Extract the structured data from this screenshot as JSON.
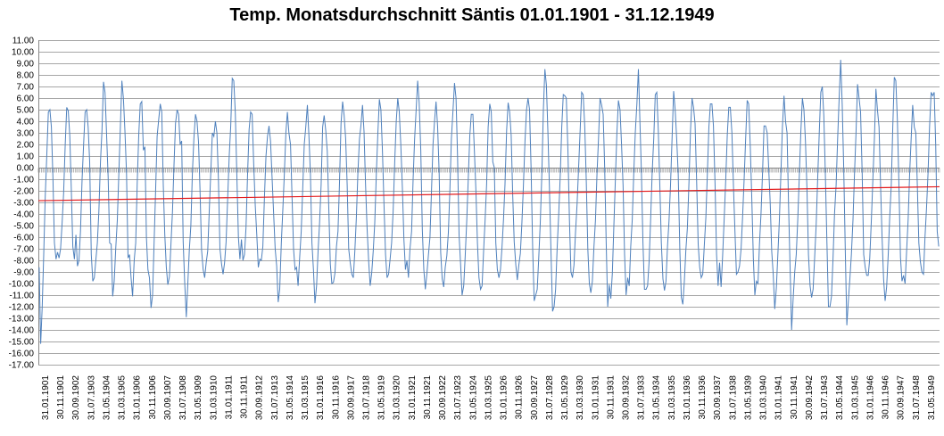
{
  "chart_data": {
    "type": "line",
    "title": "Temp. Monatsdurchschnitt Säntis 01.01.1901  - 31.12.1949",
    "xlabel": "",
    "ylabel": "",
    "ylim": [
      -17,
      11
    ],
    "y_ticks": [
      "11.00",
      "10.00",
      "9.00",
      "8.00",
      "7.00",
      "6.00",
      "5.00",
      "4.00",
      "3.00",
      "2.00",
      "1.00",
      "0.00",
      "-1.00",
      "-2.00",
      "-3.00",
      "-4.00",
      "-5.00",
      "-6.00",
      "-7.00",
      "-8.00",
      "-9.00",
      "-10.00",
      "-11.00",
      "-12.00",
      "-13.00",
      "-14.00",
      "-15.00",
      "-16.00",
      "-17.00"
    ],
    "x_ticks": [
      "31.01.1901",
      "30.11.1901",
      "30.09.1902",
      "31.07.1903",
      "31.05.1904",
      "31.03.1905",
      "31.01.1906",
      "30.11.1906",
      "30.09.1907",
      "31.07.1908",
      "31.05.1909",
      "31.03.1910",
      "31.01.1911",
      "30.11.1911",
      "30.09.1912",
      "31.07.1913",
      "31.05.1914",
      "31.03.1915",
      "31.01.1916",
      "30.11.1916",
      "30.09.1917",
      "31.07.1918",
      "31.05.1919",
      "31.03.1920",
      "31.01.1921",
      "30.11.1921",
      "30.09.1922",
      "31.07.1923",
      "31.05.1924",
      "31.03.1925",
      "31.01.1926",
      "30.11.1926",
      "30.09.1927",
      "31.07.1928",
      "31.05.1929",
      "31.03.1930",
      "31.01.1931",
      "30.11.1931",
      "30.09.1932",
      "31.07.1933",
      "31.05.1934",
      "31.03.1935",
      "31.01.1936",
      "30.11.1936",
      "30.09.1937",
      "31.07.1938",
      "31.05.1939",
      "31.03.1940",
      "31.01.1941",
      "30.11.1941",
      "30.09.1942",
      "31.07.1943",
      "31.05.1944",
      "31.03.1945",
      "31.01.1946",
      "30.11.1946",
      "30.09.1947",
      "31.07.1948",
      "31.05.1949"
    ],
    "grid": true,
    "legend": "none",
    "colors": {
      "series": "#4f81bd",
      "trend": "#e31a1c",
      "grid": "#a6a6a6"
    },
    "series": [
      {
        "type": "line",
        "values": [
          -8.6,
          -15.2,
          -12.0,
          -7.5,
          -2.5,
          1.0,
          4.8,
          5.0,
          3.5,
          -0.8,
          -6.5,
          -7.9,
          -7.3,
          -7.8,
          -7.0,
          -4.8,
          -2.2,
          2.0,
          5.2,
          4.9,
          2.8,
          -1.8,
          -6.8,
          -7.9,
          -5.8,
          -8.5,
          -8.0,
          -5.5,
          -1.0,
          2.0,
          4.8,
          5.0,
          3.5,
          0.5,
          -7.5,
          -9.8,
          -9.5,
          -8.0,
          -6.5,
          -3.8,
          0.5,
          3.2,
          7.4,
          6.5,
          3.0,
          -0.8,
          -6.5,
          -6.6,
          -11.1,
          -9.8,
          -7.0,
          -4.5,
          -0.5,
          3.5,
          7.5,
          6.0,
          3.2,
          -0.5,
          -7.8,
          -7.5,
          -9.5,
          -11.1,
          -8.0,
          -6.5,
          -1.3,
          2.8,
          5.5,
          5.7,
          1.5,
          1.8,
          -6.0,
          -8.8,
          -9.5,
          -12.1,
          -11.0,
          -6.5,
          -2.0,
          2.7,
          4.1,
          5.5,
          4.8,
          -1.5,
          -5.8,
          -8.6,
          -10.1,
          -9.4,
          -6.6,
          -3.8,
          0.2,
          3.8,
          5.0,
          4.6,
          2.0,
          2.3,
          -6.4,
          -9.9,
          -12.9,
          -10.0,
          -7.1,
          -5.0,
          -0.5,
          2.5,
          4.6,
          4.0,
          2.2,
          -2.0,
          -7.1,
          -8.8,
          -9.5,
          -8.2,
          -7.2,
          -3.8,
          -0.5,
          3.0,
          2.7,
          4.0,
          3.0,
          -1.0,
          -7.0,
          -8.3,
          -9.2,
          -8.2,
          -6.4,
          -2.8,
          1.0,
          3.6,
          7.7,
          7.5,
          4.8,
          -0.5,
          -6.0,
          -7.9,
          -6.2,
          -8.0,
          -7.5,
          -5.2,
          -0.5,
          3.3,
          4.8,
          4.6,
          0.4,
          -3.3,
          -5.8,
          -8.6,
          -7.9,
          -8.0,
          -6.8,
          -2.5,
          1.0,
          2.7,
          3.6,
          2.3,
          -0.8,
          -4.0,
          -7.0,
          -8.5,
          -11.6,
          -10.5,
          -6.5,
          -3.6,
          -0.5,
          3.0,
          4.8,
          3.0,
          2.0,
          -2.5,
          -7.0,
          -8.8,
          -8.6,
          -10.2,
          -7.7,
          -5.5,
          -1.8,
          2.0,
          3.5,
          5.4,
          2.8,
          -0.5,
          -6.5,
          -8.8,
          -11.7,
          -10.2,
          -7.2,
          -4.7,
          -1.5,
          3.5,
          4.5,
          3.2,
          1.4,
          -3.5,
          -8.3,
          -10.0,
          -9.9,
          -9.1,
          -6.8,
          -5.5,
          -1.3,
          3.8,
          5.7,
          4.5,
          2.5,
          -1.5,
          -7.0,
          -8.2,
          -9.2,
          -9.5,
          -7.2,
          -4.3,
          -0.5,
          2.5,
          3.7,
          5.4,
          3.1,
          -1.5,
          -5.2,
          -8.1,
          -10.2,
          -9.1,
          -7.2,
          -4.8,
          -0.5,
          3.0,
          5.9,
          5.0,
          1.5,
          -3.0,
          -7.5,
          -9.5,
          -9.2,
          -7.9,
          -6.5,
          -3.8,
          0.5,
          4.0,
          6.0,
          4.8,
          2.0,
          -1.8,
          -6.2,
          -8.8,
          -8.0,
          -9.5,
          -7.0,
          -5.5,
          -1.0,
          2.5,
          5.0,
          7.5,
          5.6,
          1.5,
          -5.3,
          -8.8,
          -10.5,
          -9.2,
          -7.5,
          -6.0,
          -2.0,
          2.0,
          4.0,
          5.7,
          3.5,
          -0.5,
          -7.3,
          -9.6,
          -10.3,
          -8.6,
          -7.6,
          -5.6,
          -2.0,
          2.5,
          4.8,
          7.3,
          6.0,
          1.0,
          -5.8,
          -8.3,
          -11.0,
          -10.2,
          -7.6,
          -4.6,
          -1.0,
          2.7,
          4.6,
          4.6,
          1.4,
          -2.0,
          -6.5,
          -9.5,
          -10.5,
          -10.2,
          -7.2,
          -4.5,
          -1.4,
          3.5,
          5.5,
          4.8,
          0.5,
          0.0,
          -6.5,
          -8.8,
          -9.5,
          -8.8,
          -6.9,
          -4.5,
          -1.4,
          3.2,
          5.6,
          4.8,
          2.8,
          -2.3,
          -6.4,
          -8.4,
          -9.7,
          -8.4,
          -7.4,
          -4.8,
          -1.6,
          2.3,
          5.0,
          6.0,
          5.0,
          0.0,
          -7.0,
          -11.5,
          -11.0,
          -10.5,
          -7.8,
          -4.8,
          -0.5,
          5.0,
          8.5,
          7.1,
          3.0,
          -1.8,
          -7.5,
          -12.4,
          -12.0,
          -10.5,
          -7.0,
          -4.0,
          -0.7,
          3.5,
          6.3,
          6.2,
          6.0,
          1.5,
          -4.5,
          -9.0,
          -9.5,
          -8.4,
          -5.6,
          -3.1,
          0.0,
          3.2,
          6.5,
          6.3,
          3.5,
          -1.2,
          -7.0,
          -10.0,
          -10.8,
          -9.8,
          -6.8,
          -4.5,
          -0.5,
          2.5,
          6.0,
          5.4,
          4.6,
          0.0,
          -6.5,
          -12.0,
          -10.1,
          -11.3,
          -9.1,
          -5.0,
          -1.0,
          3.0,
          5.8,
          5.0,
          2.0,
          -1.5,
          -7.5,
          -11.0,
          -9.5,
          -10.2,
          -6.8,
          -4.5,
          -0.5,
          3.0,
          5.5,
          8.5,
          4.0,
          -0.5,
          -6.5,
          -10.5,
          -10.5,
          -10.2,
          -8.1,
          -4.5,
          -0.5,
          2.5,
          6.3,
          6.5,
          3.2,
          -1.5,
          -6.5,
          -9.6,
          -10.6,
          -9.8,
          -6.8,
          -4.6,
          -1.5,
          2.7,
          6.6,
          5.0,
          2.5,
          -0.5,
          -7.0,
          -11.2,
          -11.8,
          -9.8,
          -7.1,
          -5.2,
          -1.2,
          3.2,
          6.0,
          5.2,
          3.8,
          -1.0,
          -6.6,
          -8.6,
          -9.5,
          -9.2,
          -6.8,
          -4.3,
          -0.5,
          3.5,
          5.5,
          5.5,
          3.6,
          -1.4,
          -7.5,
          -10.2,
          -8.2,
          -10.3,
          -7.6,
          -4.3,
          -1.0,
          2.8,
          5.2,
          5.2,
          3.0,
          -1.5,
          -5.5,
          -9.2,
          -9.0,
          -8.5,
          -7.0,
          -4.2,
          -1.0,
          2.5,
          5.8,
          5.5,
          1.8,
          -2.7,
          -7.8,
          -11.0,
          -9.8,
          -10.0,
          -6.6,
          -4.0,
          -0.5,
          3.6,
          3.6,
          3.0,
          0.0,
          -3.0,
          -7.2,
          -9.2,
          -12.2,
          -10.4,
          -7.5,
          -4.5,
          -0.5,
          3.5,
          6.2,
          4.0,
          3.0,
          -3.3,
          -8.6,
          -14.0,
          -11.2,
          -9.0,
          -7.5,
          -4.5,
          -0.8,
          3.0,
          6.0,
          5.0,
          2.3,
          -1.8,
          -7.5,
          -10.2,
          -11.2,
          -10.5,
          -7.8,
          -5.0,
          -1.0,
          3.0,
          6.5,
          7.0,
          4.5,
          -0.5,
          -6.5,
          -12.0,
          -12.0,
          -11.1,
          -7.9,
          -4.0,
          -1.5,
          2.5,
          6.0,
          9.3,
          5.5,
          0.0,
          -7.3,
          -13.6,
          -11.5,
          -9.6,
          -7.5,
          -4.5,
          -0.5,
          3.0,
          7.2,
          6.0,
          4.8,
          -0.5,
          -7.5,
          -8.6,
          -9.3,
          -9.3,
          -7.8,
          -4.5,
          -1.0,
          2.5,
          6.8,
          5.0,
          3.5,
          -1.5,
          -6.0,
          -9.6,
          -11.5,
          -10.3,
          -7.5,
          -4.2,
          -1.5,
          3.5,
          7.8,
          7.5,
          4.0,
          -1.5,
          -7.7,
          -9.8,
          -9.3,
          -10.0,
          -7.2,
          -4.5,
          -0.5,
          2.5,
          5.4,
          3.5,
          3.0,
          -1.5,
          -6.5,
          -8.1,
          -9.0,
          -9.2,
          -6.0,
          -3.5,
          -0.5,
          3.5,
          6.5,
          6.2,
          6.5,
          2.0,
          -5.5,
          -6.8
        ]
      },
      {
        "type": "line",
        "values": [
          -2.85,
          -1.65
        ],
        "style": "trend"
      }
    ]
  }
}
